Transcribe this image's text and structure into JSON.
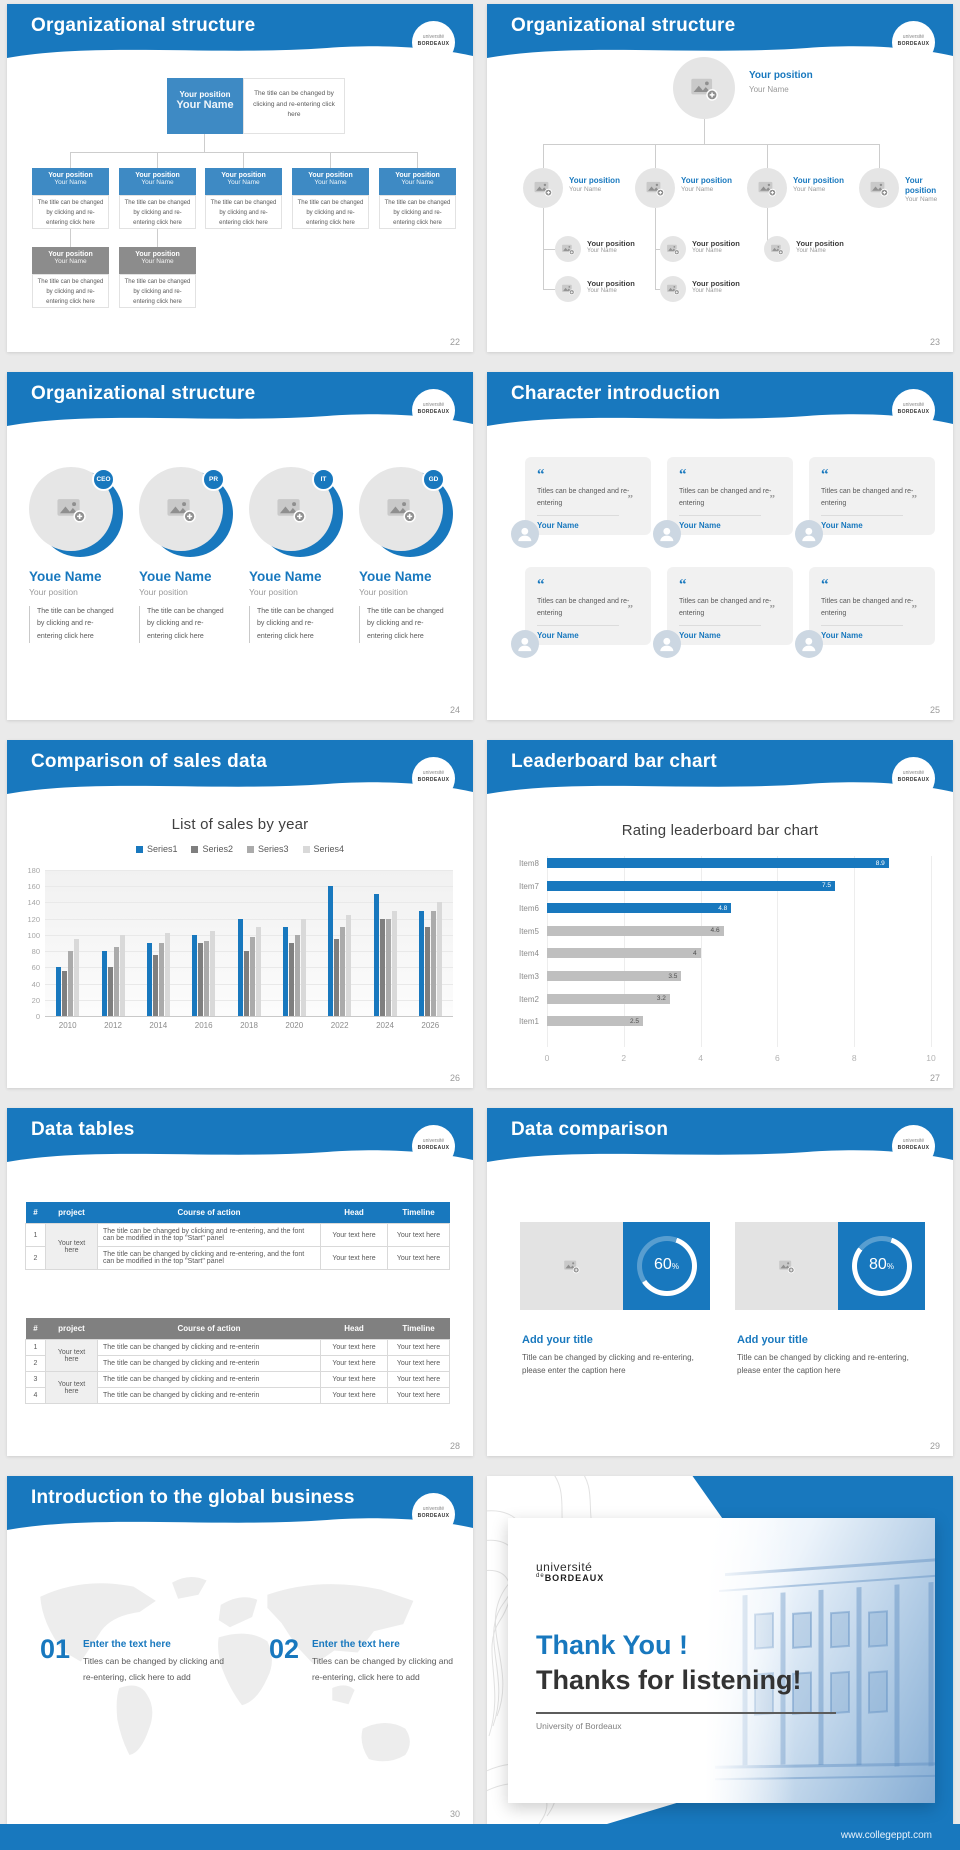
{
  "logo": {
    "line1": "université",
    "line2": "BORDEAUX"
  },
  "footer": {
    "url": "www.collegeppt.com"
  },
  "slide22": {
    "title": "Organizational structure",
    "page_number": "22",
    "root": {
      "position": "Your position",
      "name": "Your Name"
    },
    "root_note": "The title can be changed by clicking and re-entering click here",
    "node": {
      "position": "Your position",
      "name": "Your Name"
    },
    "node_note": "The title can be changed by clicking and re-entering click here"
  },
  "slide23": {
    "title": "Organizational structure",
    "page_number": "23",
    "node": {
      "position": "Your position",
      "name": "Your Name"
    }
  },
  "slide24": {
    "title": "Organizational structure",
    "page_number": "24",
    "badges": [
      "CEO",
      "PR",
      "IT",
      "GD"
    ],
    "name": "Youe Name",
    "position": "Your position",
    "note": "The title can be changed by clicking and re-entering click here"
  },
  "slide25": {
    "title": "Character introduction",
    "page_number": "25",
    "open_quote": "“",
    "close_quote": "”",
    "card_text": "Titles can be changed and re-entering",
    "card_name": "Your Name"
  },
  "slide26": {
    "title": "Comparison of sales data",
    "page_number": "26"
  },
  "slide27": {
    "title": "Leaderboard bar chart",
    "page_number": "27"
  },
  "chart_data": [
    {
      "type": "bar",
      "title": "List of sales by year",
      "categories": [
        "2010",
        "2012",
        "2014",
        "2016",
        "2018",
        "2020",
        "2022",
        "2024",
        "2026"
      ],
      "series": [
        {
          "name": "Series1",
          "color": "#1878BE",
          "values": [
            60,
            80,
            90,
            100,
            120,
            110,
            160,
            150,
            130
          ]
        },
        {
          "name": "Series2",
          "color": "#7F7F7F",
          "values": [
            55,
            60,
            75,
            90,
            80,
            90,
            95,
            120,
            110
          ]
        },
        {
          "name": "Series3",
          "color": "#ABABAB",
          "values": [
            80,
            85,
            90,
            92,
            98,
            100,
            110,
            120,
            130
          ]
        },
        {
          "name": "Series4",
          "color": "#D9D9D9",
          "values": [
            95,
            100,
            102,
            105,
            110,
            120,
            125,
            130,
            140
          ]
        }
      ],
      "ylim": [
        0,
        180
      ],
      "ytick_step": 20,
      "grid": true,
      "legend_position": "top"
    },
    {
      "type": "bar-horizontal",
      "title": "Rating leaderboard bar chart",
      "categories": [
        "Item8",
        "Item7",
        "Item6",
        "Item5",
        "Item4",
        "Item3",
        "Item2",
        "Item1"
      ],
      "values": [
        8.9,
        7.5,
        4.8,
        4.6,
        4,
        3.5,
        3.2,
        2.5
      ],
      "colors": [
        "#1878BE",
        "#1878BE",
        "#1878BE",
        "#BFBFBF",
        "#BFBFBF",
        "#BFBFBF",
        "#BFBFBF",
        "#BFBFBF"
      ],
      "xlim": [
        0,
        10
      ],
      "xtick_step": 2,
      "grid": true
    }
  ],
  "slide28": {
    "title": "Data tables",
    "page_number": "28",
    "table1": {
      "headers": [
        "#",
        "project",
        "Course of action",
        "Head",
        "Timeline"
      ],
      "project_cell": "Your text here",
      "rows": [
        {
          "num": "1",
          "action": "The title can be changed by clicking and re-entering, and the font can be modified in the top \"Start\" panel",
          "head": "Your text here",
          "timeline": "Your text here"
        },
        {
          "num": "2",
          "action": "The title can be changed by clicking and re-entering, and the font can be modified in the top \"Start\" panel",
          "head": "Your text here",
          "timeline": "Your text here"
        }
      ]
    },
    "table2": {
      "headers": [
        "#",
        "project",
        "Course of action",
        "Head",
        "Timeline"
      ],
      "project_cell_a": "Your text here",
      "project_cell_b": "Your text here",
      "rows": [
        {
          "num": "1",
          "action": "The title can be changed by clicking and re-enterin",
          "head": "Your text here",
          "timeline": "Your text here"
        },
        {
          "num": "2",
          "action": "The title can be changed by clicking and re-enterin",
          "head": "Your text here",
          "timeline": "Your text here"
        },
        {
          "num": "3",
          "action": "The title can be changed by clicking and re-enterin",
          "head": "Your text here",
          "timeline": "Your text here"
        },
        {
          "num": "4",
          "action": "The title can be changed by clicking and re-enterin",
          "head": "Your text here",
          "timeline": "Your text here"
        }
      ]
    }
  },
  "slide29": {
    "title": "Data comparison",
    "page_number": "29",
    "cards": [
      {
        "percent": "60",
        "percent_sign": "%",
        "title": "Add your title",
        "caption": "Title can be changed by clicking and re-entering, please enter the caption here"
      },
      {
        "percent": "80",
        "percent_sign": "%",
        "title": "Add your title",
        "caption": "Title can be changed by clicking and re-entering, please enter the caption here"
      }
    ]
  },
  "slide30": {
    "title": "Introduction to the global business",
    "page_number": "30",
    "items": [
      {
        "num": "01",
        "heading": "Enter the text here",
        "text": "Titles can be changed by clicking and re-entering, click here to add"
      },
      {
        "num": "02",
        "heading": "Enter the text here",
        "text": "Titles can be changed by clicking and re-entering, click here to add"
      }
    ]
  },
  "slide31": {
    "logo_line1": "université",
    "logo_de": "de",
    "logo_line2": "BORDEAUX",
    "thank_you": "Thank You !",
    "thanks": "Thanks for listening!",
    "caption": "University of Bordeaux"
  }
}
